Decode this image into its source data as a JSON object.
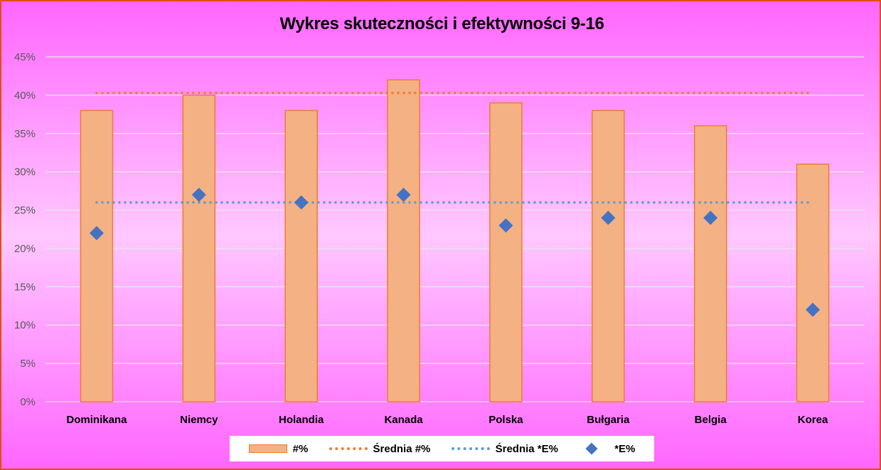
{
  "chart_data": {
    "type": "bar",
    "title": "Wykres skuteczności i efektywności 9-16",
    "categories": [
      "Dominikana",
      "Niemcy",
      "Holandia",
      "Kanada",
      "Polska",
      "Bułgaria",
      "Belgia",
      "Korea"
    ],
    "ylim": [
      0,
      45
    ],
    "yticks": [
      "0%",
      "5%",
      "10%",
      "15%",
      "20%",
      "25%",
      "30%",
      "35%",
      "40%",
      "45%"
    ],
    "grid": true,
    "legend_position": "bottom",
    "series": [
      {
        "name": "#%",
        "type": "bar",
        "values": [
          38,
          40,
          38,
          42,
          39,
          38,
          36,
          31
        ],
        "color": "#f4b183",
        "edge_color": "#ed7d31"
      },
      {
        "name": "Średnia #%",
        "type": "line",
        "style": "dotted",
        "values": [
          40.3,
          40.3,
          40.3,
          40.3,
          40.3,
          40.3,
          40.3,
          40.3
        ],
        "color": "#ed7d31"
      },
      {
        "name": "Średnia *E%",
        "type": "line",
        "style": "dotted",
        "values": [
          26,
          26,
          26,
          26,
          26,
          26,
          26,
          26
        ],
        "color": "#5b9bd5"
      },
      {
        "name": "*E%",
        "type": "scatter",
        "marker": "diamond",
        "values": [
          22,
          27,
          26,
          27,
          23,
          24,
          24,
          12
        ],
        "color": "#4472c4"
      }
    ]
  }
}
